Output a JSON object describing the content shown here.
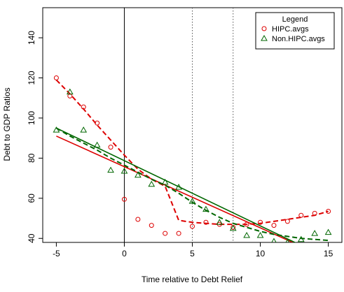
{
  "chart_data": {
    "type": "scatter",
    "title": "",
    "xlabel": "Time relative to Debt Relief",
    "ylabel": "Debt to GDP Ratios",
    "xlim": [
      -6,
      16
    ],
    "ylim": [
      38,
      155
    ],
    "x_ticks": [
      -5,
      0,
      5,
      10,
      15
    ],
    "y_ticks": [
      40,
      60,
      80,
      100,
      120,
      140
    ],
    "x_tick_labels": [
      "-5",
      "0",
      "5",
      "10",
      "15"
    ],
    "y_tick_labels": [
      "40",
      "60",
      "80",
      "100",
      "120",
      "140"
    ],
    "grid": false,
    "vertical_lines": [
      {
        "x": 0,
        "style": "solid"
      },
      {
        "x": 5,
        "style": "dotted"
      },
      {
        "x": 8,
        "style": "dotted"
      }
    ],
    "legend": {
      "title": "Legend",
      "placement": "top-right"
    },
    "series": [
      {
        "name": "HIPC.avgs",
        "marker": "circle",
        "color": "#dd0000",
        "x": [
          -5,
          -4,
          -3,
          -2,
          -1,
          0,
          1,
          2,
          3,
          4,
          5,
          6,
          7,
          8,
          9,
          10,
          11,
          12,
          13,
          14,
          15
        ],
        "y": [
          120,
          111,
          105.5,
          97.5,
          85.5,
          59.5,
          49.5,
          46.5,
          42.5,
          42.5,
          46,
          48,
          47,
          45.5,
          47,
          48,
          46.5,
          48.5,
          51.5,
          52.5,
          53.5
        ],
        "smooth": {
          "x": [
            -5,
            -4,
            -3,
            -2,
            -1,
            0,
            1,
            2,
            3,
            4,
            5,
            6,
            7,
            8,
            9,
            10,
            11,
            12,
            13,
            14,
            15
          ],
          "y": [
            119,
            112,
            104.5,
            96.5,
            89,
            81.5,
            74.5,
            69.5,
            66,
            49,
            48,
            47.5,
            47,
            47,
            47,
            47.5,
            48.5,
            49.5,
            50.5,
            51.5,
            53.5
          ]
        },
        "fit": {
          "x": [
            -5,
            15
          ],
          "y": [
            91,
            30
          ]
        }
      },
      {
        "name": "Non.HIPC.avgs",
        "marker": "triangle",
        "color": "#006600",
        "x": [
          -5,
          -4,
          -3,
          -2,
          -1,
          0,
          1,
          2,
          3,
          4,
          5,
          6,
          7,
          8,
          9,
          10,
          11,
          12,
          13,
          14,
          15
        ],
        "y": [
          94,
          113,
          94,
          86.5,
          74,
          73.5,
          71.5,
          67,
          68,
          65.5,
          58.5,
          54.5,
          48,
          45,
          41.5,
          41.5,
          38.5,
          38,
          39.5,
          42.5,
          43
        ],
        "smooth": {
          "x": [
            -5,
            -4,
            -3,
            -2,
            -1,
            0,
            1,
            2,
            3,
            4,
            5,
            6,
            7,
            8,
            9,
            10,
            11,
            12,
            13,
            14,
            15
          ],
          "y": [
            95,
            91,
            87.5,
            84,
            80,
            76.5,
            73,
            69.5,
            66.5,
            62.5,
            58,
            54,
            50.5,
            47.5,
            45.5,
            43.5,
            42,
            41,
            40,
            39.5,
            39
          ]
        },
        "fit": {
          "x": [
            -5,
            15
          ],
          "y": [
            95,
            30
          ]
        }
      }
    ]
  }
}
